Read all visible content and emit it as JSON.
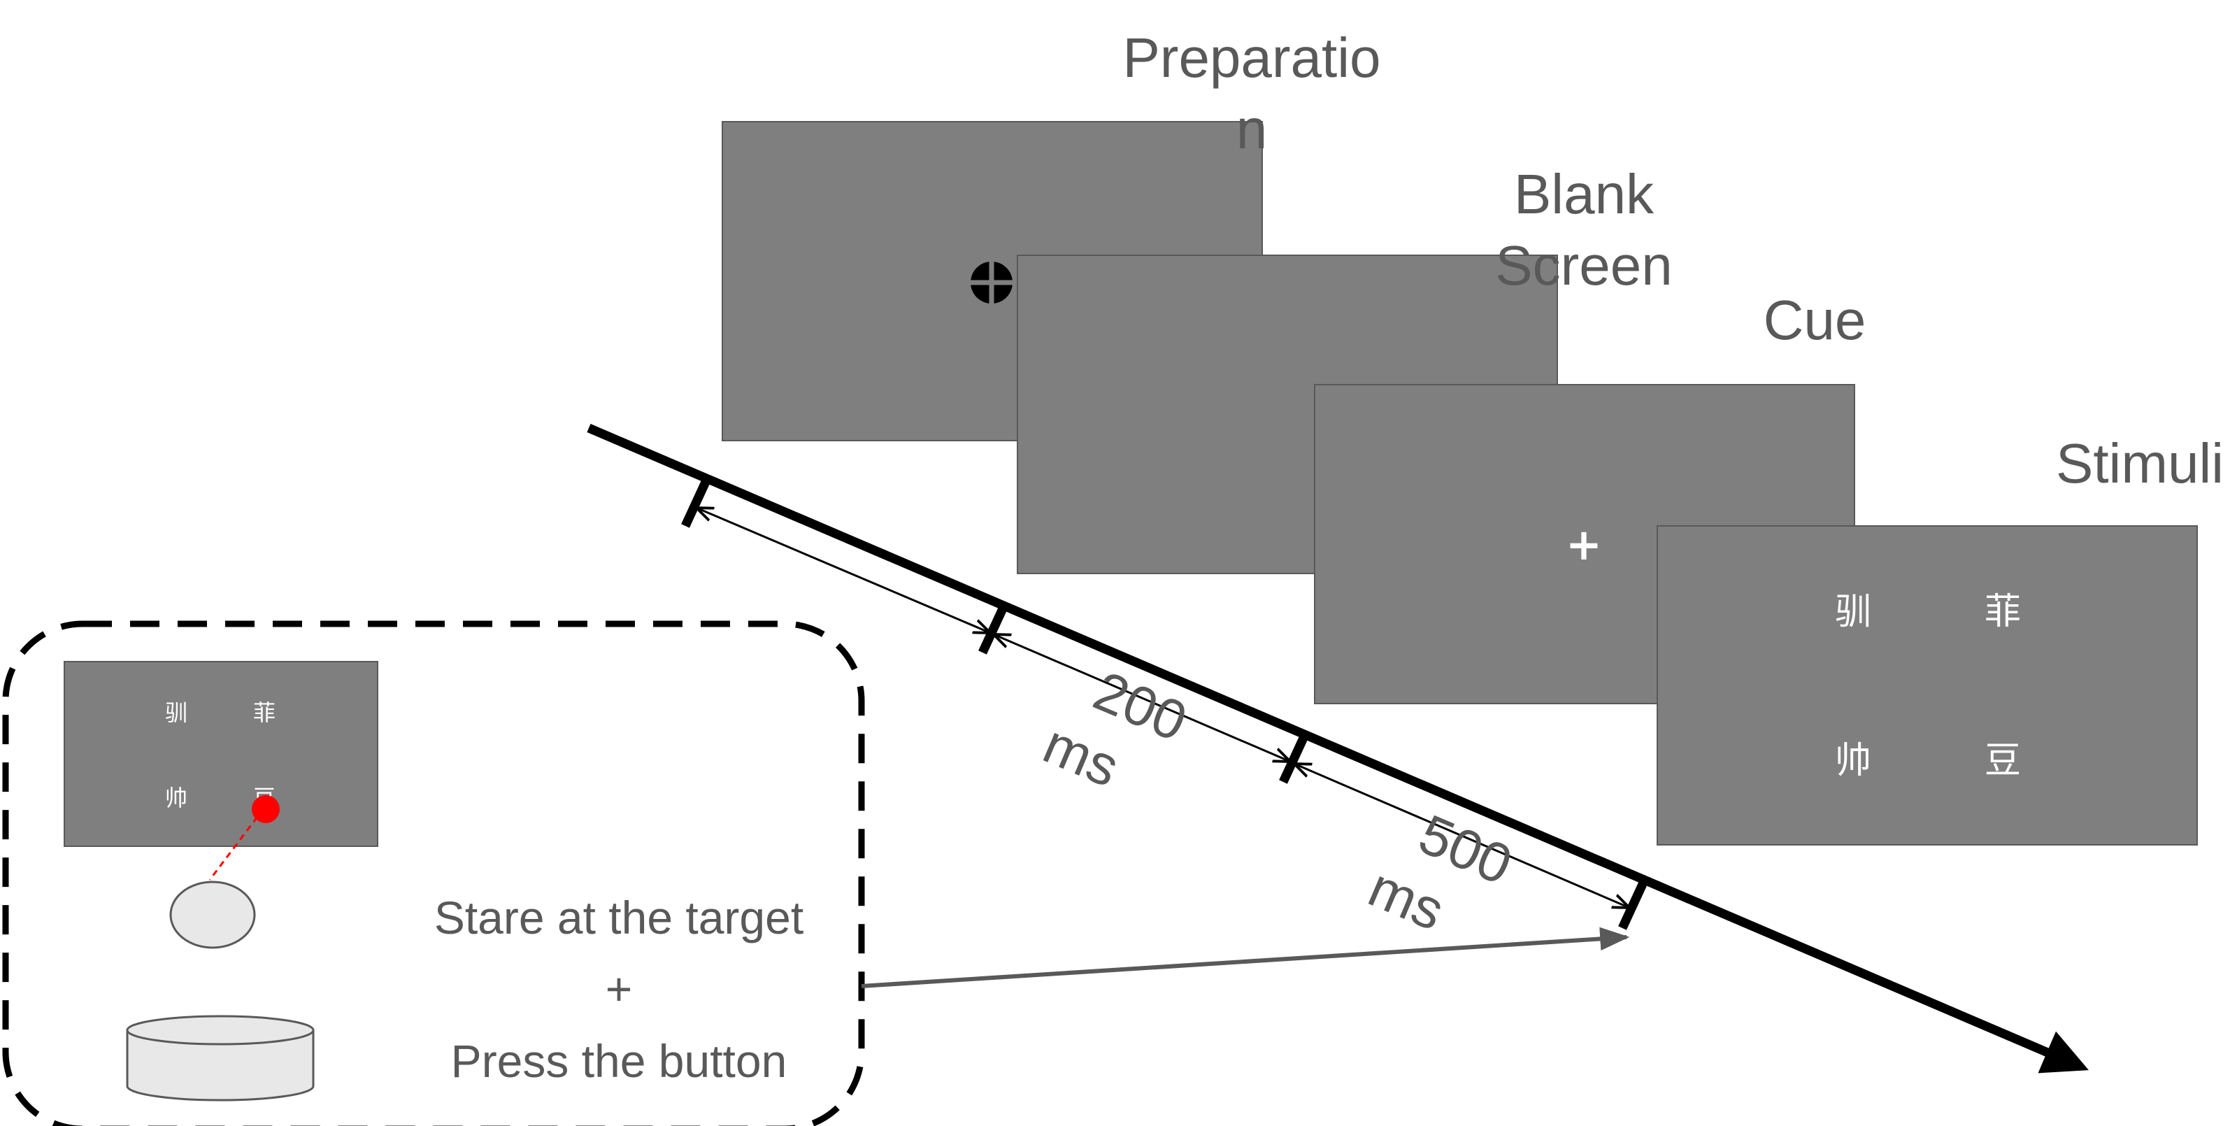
{
  "stages": {
    "preparation": {
      "label_line1": "Preparatio",
      "label_line2": "n"
    },
    "blank": {
      "label_line1": "Blank",
      "label_line2": "Screen"
    },
    "cue": {
      "label": "Cue",
      "symbol": "+"
    },
    "stimuli": {
      "label": "Stimuli",
      "chars": [
        "驯",
        "菲",
        "帅",
        "豆"
      ]
    }
  },
  "durations": {
    "first": {
      "value": "200",
      "unit": "ms"
    },
    "second": {
      "value": "500",
      "unit": "ms"
    }
  },
  "inset": {
    "chars": [
      "驯",
      "菲",
      "帅",
      "豆"
    ],
    "instruction_line1": "Stare at the target",
    "instruction_plus": "+",
    "instruction_line2": "Press the button"
  },
  "colors": {
    "screen": "#7f7f7f",
    "text": "#595959",
    "gaze_dot": "#ff0000",
    "device": "#e8e8e8"
  }
}
